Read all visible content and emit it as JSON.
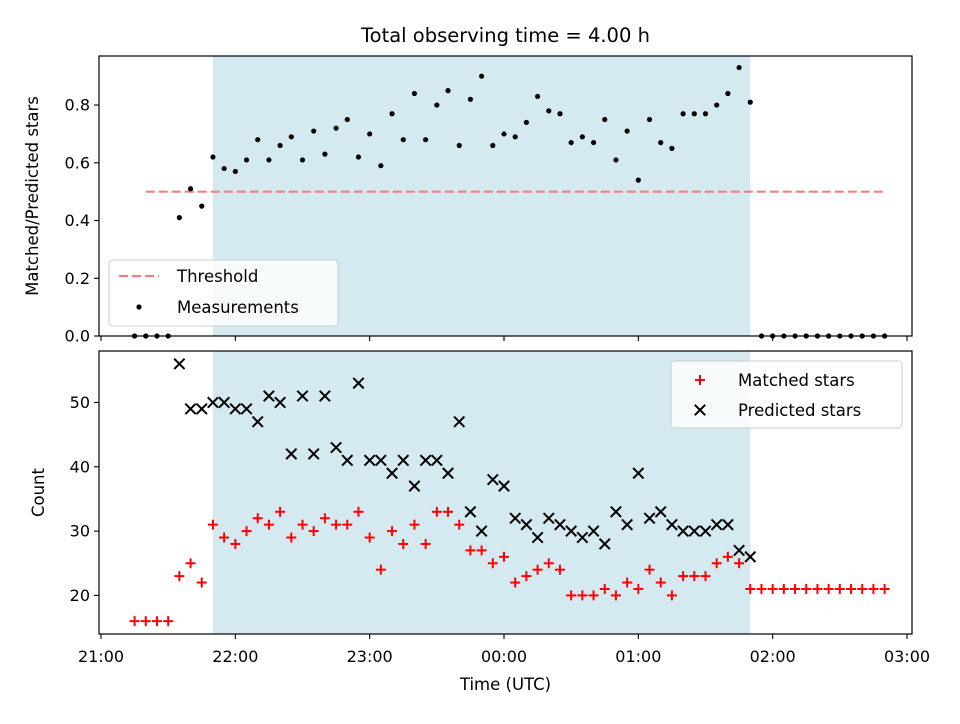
{
  "chart_data": [
    {
      "type": "scatter",
      "title": "Total observing time = 4.00 h",
      "ylabel": "Matched/Predicted stars",
      "xlabel": "",
      "xlim": [
        "21:00",
        "03:00"
      ],
      "ylim": [
        0,
        0.97
      ],
      "yticks": [
        "0.0",
        "0.2",
        "0.4",
        "0.6",
        "0.8"
      ],
      "ytick_values": [
        0,
        0.2,
        0.4,
        0.6,
        0.8
      ],
      "shaded_interval": [
        "21:50",
        "01:50"
      ],
      "shade_color": "#d4eaf0",
      "legend": {
        "position": "lower-left",
        "entries": [
          "Threshold",
          "Measurements"
        ]
      },
      "threshold": {
        "name": "Threshold",
        "value": 0.5,
        "x_range": [
          "21:20",
          "02:50"
        ],
        "color": "#f08080"
      },
      "series": [
        {
          "name": "Measurements",
          "color": "#000000",
          "x": [
            "21:15",
            "21:20",
            "21:25",
            "21:30",
            "21:35",
            "21:40",
            "21:45",
            "21:50",
            "21:55",
            "22:00",
            "22:05",
            "22:10",
            "22:15",
            "22:20",
            "22:25",
            "22:30",
            "22:35",
            "22:40",
            "22:45",
            "22:50",
            "22:55",
            "23:00",
            "23:05",
            "23:10",
            "23:15",
            "23:20",
            "23:25",
            "23:30",
            "23:35",
            "23:40",
            "23:45",
            "23:50",
            "23:55",
            "00:00",
            "00:05",
            "00:10",
            "00:15",
            "00:20",
            "00:25",
            "00:30",
            "00:35",
            "00:40",
            "00:45",
            "00:50",
            "00:55",
            "01:00",
            "01:05",
            "01:10",
            "01:15",
            "01:20",
            "01:25",
            "01:30",
            "01:35",
            "01:40",
            "01:45",
            "01:50",
            "01:55",
            "02:00",
            "02:05",
            "02:10",
            "02:15",
            "02:20",
            "02:25",
            "02:30",
            "02:35",
            "02:40",
            "02:45",
            "02:50"
          ],
          "y": [
            0,
            0,
            0,
            0,
            0.41,
            0.51,
            0.45,
            0.62,
            0.58,
            0.57,
            0.61,
            0.68,
            0.61,
            0.66,
            0.69,
            0.61,
            0.71,
            0.63,
            0.72,
            0.75,
            0.62,
            0.7,
            0.59,
            0.77,
            0.68,
            0.84,
            0.68,
            0.8,
            0.85,
            0.66,
            0.82,
            0.9,
            0.66,
            0.7,
            0.69,
            0.74,
            0.83,
            0.78,
            0.77,
            0.67,
            0.69,
            0.67,
            0.75,
            0.61,
            0.71,
            0.54,
            0.75,
            0.67,
            0.65,
            0.77,
            0.77,
            0.77,
            0.8,
            0.84,
            0.93,
            0.81,
            0,
            0,
            0,
            0,
            0,
            0,
            0,
            0,
            0,
            0,
            0,
            0
          ]
        }
      ]
    },
    {
      "type": "scatter",
      "title": "",
      "ylabel": "Count",
      "xlabel": "Time (UTC)",
      "xlim": [
        "21:00",
        "03:00"
      ],
      "xticks": [
        "21:00",
        "22:00",
        "23:00",
        "00:00",
        "01:00",
        "02:00",
        "03:00"
      ],
      "ylim": [
        14,
        58
      ],
      "yticks": [
        "20",
        "30",
        "40",
        "50"
      ],
      "ytick_values": [
        20,
        30,
        40,
        50
      ],
      "shaded_interval": [
        "21:50",
        "01:50"
      ],
      "shade_color": "#d4eaf0",
      "legend": {
        "position": "top-right",
        "entries": [
          "Matched stars",
          "Predicted stars"
        ]
      },
      "x": [
        "21:15",
        "21:20",
        "21:25",
        "21:30",
        "21:35",
        "21:40",
        "21:45",
        "21:50",
        "21:55",
        "22:00",
        "22:05",
        "22:10",
        "22:15",
        "22:20",
        "22:25",
        "22:30",
        "22:35",
        "22:40",
        "22:45",
        "22:50",
        "22:55",
        "23:00",
        "23:05",
        "23:10",
        "23:15",
        "23:20",
        "23:25",
        "23:30",
        "23:35",
        "23:40",
        "23:45",
        "23:50",
        "23:55",
        "00:00",
        "00:05",
        "00:10",
        "00:15",
        "00:20",
        "00:25",
        "00:30",
        "00:35",
        "00:40",
        "00:45",
        "00:50",
        "00:55",
        "01:00",
        "01:05",
        "01:10",
        "01:15",
        "01:20",
        "01:25",
        "01:30",
        "01:35",
        "01:40",
        "01:45",
        "01:50",
        "01:55",
        "02:00",
        "02:05",
        "02:10",
        "02:15",
        "02:20",
        "02:25",
        "02:30",
        "02:35",
        "02:40",
        "02:45",
        "02:50"
      ],
      "series": [
        {
          "name": "Matched stars",
          "color": "#ff0000",
          "marker": "plus",
          "y": [
            16,
            16,
            16,
            16,
            23,
            25,
            22,
            31,
            29,
            28,
            30,
            32,
            31,
            33,
            29,
            31,
            30,
            32,
            31,
            31,
            33,
            29,
            24,
            30,
            28,
            31,
            28,
            33,
            33,
            31,
            27,
            27,
            25,
            26,
            22,
            23,
            24,
            25,
            24,
            20,
            20,
            20,
            21,
            20,
            22,
            21,
            24,
            22,
            20,
            23,
            23,
            23,
            25,
            26,
            25,
            21,
            21,
            21,
            21,
            21,
            21,
            21,
            21,
            21,
            21,
            21,
            21,
            21
          ]
        },
        {
          "name": "Predicted stars",
          "color": "#000000",
          "marker": "x",
          "x": [
            "21:35",
            "21:40",
            "21:45",
            "21:50",
            "21:55",
            "22:00",
            "22:05",
            "22:10",
            "22:15",
            "22:20",
            "22:25",
            "22:30",
            "22:35",
            "22:40",
            "22:45",
            "22:50",
            "22:55",
            "23:00",
            "23:05",
            "23:10",
            "23:15",
            "23:20",
            "23:25",
            "23:30",
            "23:35",
            "23:40",
            "23:45",
            "23:50",
            "23:55",
            "00:00",
            "00:05",
            "00:10",
            "00:15",
            "00:20",
            "00:25",
            "00:30",
            "00:35",
            "00:40",
            "00:45",
            "00:50",
            "00:55",
            "01:00",
            "01:05",
            "01:10",
            "01:15",
            "01:20",
            "01:25",
            "01:30",
            "01:35",
            "01:40",
            "01:45",
            "01:50"
          ],
          "y": [
            56,
            49,
            49,
            50,
            50,
            49,
            49,
            47,
            51,
            50,
            42,
            51,
            42,
            51,
            43,
            41,
            53,
            41,
            41,
            39,
            41,
            37,
            41,
            41,
            39,
            47,
            33,
            30,
            38,
            37,
            32,
            31,
            29,
            32,
            31,
            30,
            29,
            30,
            28,
            33,
            31,
            39,
            32,
            33,
            31,
            30,
            30,
            30,
            31,
            31,
            27,
            26
          ]
        }
      ]
    }
  ]
}
